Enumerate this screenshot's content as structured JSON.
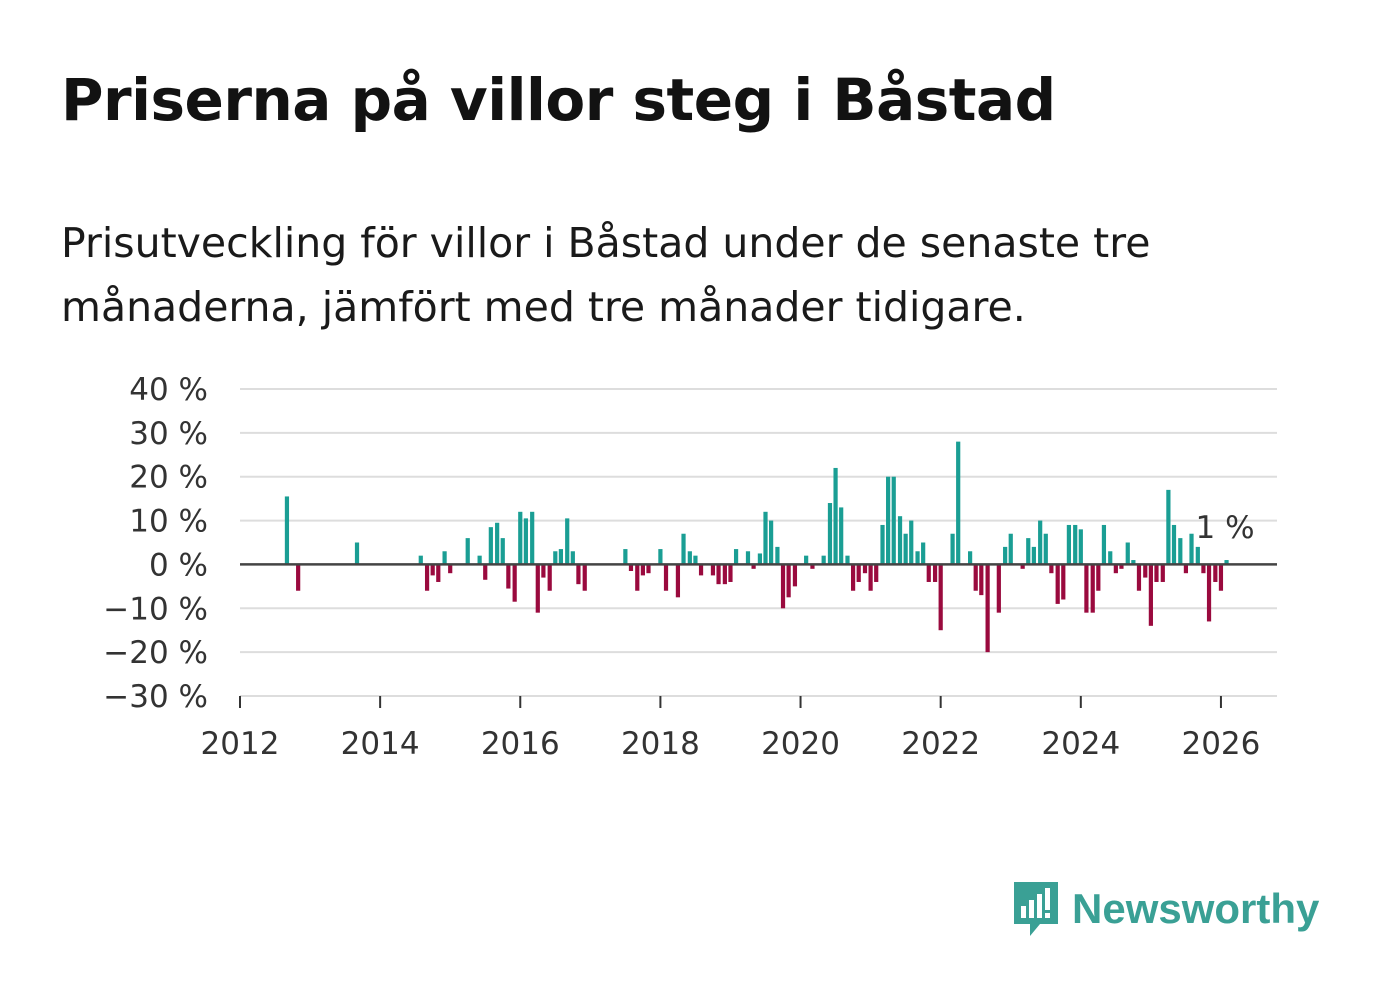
{
  "header": {
    "title": "Priserna på villor steg i Båstad",
    "subtitle": "Prisutveckling för villor i Båstad under de senaste tre månaderna, jämfört med tre månader tidigare."
  },
  "brand": {
    "name": "Newsworthy",
    "icon": "newsworthy-logo-icon"
  },
  "colors": {
    "positive": "#1a9e94",
    "negative": "#9a0a3e",
    "zero_line": "#444444",
    "grid": "#dddddd",
    "brand": "#3aa095"
  },
  "chart_data": {
    "type": "bar",
    "title": "Priserna på villor steg i Båstad",
    "xlabel": "",
    "ylabel": "",
    "ylim": [
      -30,
      40
    ],
    "xlim": [
      2012,
      2026.8
    ],
    "yticks": [
      40,
      30,
      20,
      10,
      0,
      -10,
      -20,
      -30
    ],
    "ytick_labels": [
      "40 %",
      "30 %",
      "20 %",
      "10 %",
      "0 %",
      "−10 %",
      "−20 %",
      "−30 %"
    ],
    "xticks": [
      2012,
      2014,
      2016,
      2018,
      2020,
      2022,
      2024,
      2026
    ],
    "xtick_labels": [
      "2012",
      "2014",
      "2016",
      "2018",
      "2020",
      "2022",
      "2024",
      "2026"
    ],
    "grid": true,
    "legend": "none",
    "last_value_label": "1 %",
    "series": [
      {
        "name": "Prisutveckling",
        "points": [
          {
            "x": 2012.67,
            "y": 15.5
          },
          {
            "x": 2012.83,
            "y": -6
          },
          {
            "x": 2013.67,
            "y": 5
          },
          {
            "x": 2014.58,
            "y": 2
          },
          {
            "x": 2014.67,
            "y": -6
          },
          {
            "x": 2014.75,
            "y": -2.5
          },
          {
            "x": 2014.83,
            "y": -4
          },
          {
            "x": 2014.92,
            "y": 3
          },
          {
            "x": 2015.0,
            "y": -2
          },
          {
            "x": 2015.25,
            "y": 6
          },
          {
            "x": 2015.42,
            "y": 2
          },
          {
            "x": 2015.5,
            "y": -3.5
          },
          {
            "x": 2015.58,
            "y": 8.5
          },
          {
            "x": 2015.67,
            "y": 9.5
          },
          {
            "x": 2015.75,
            "y": 6
          },
          {
            "x": 2015.83,
            "y": -5.5
          },
          {
            "x": 2015.92,
            "y": -8.5
          },
          {
            "x": 2016.0,
            "y": 12
          },
          {
            "x": 2016.08,
            "y": 10.5
          },
          {
            "x": 2016.17,
            "y": 12
          },
          {
            "x": 2016.25,
            "y": -11
          },
          {
            "x": 2016.33,
            "y": -3
          },
          {
            "x": 2016.42,
            "y": -6
          },
          {
            "x": 2016.5,
            "y": 3
          },
          {
            "x": 2016.58,
            "y": 3.5
          },
          {
            "x": 2016.67,
            "y": 10.5
          },
          {
            "x": 2016.75,
            "y": 3
          },
          {
            "x": 2016.83,
            "y": -4.5
          },
          {
            "x": 2016.92,
            "y": -6
          },
          {
            "x": 2017.5,
            "y": 3.5
          },
          {
            "x": 2017.58,
            "y": -1.5
          },
          {
            "x": 2017.67,
            "y": -6
          },
          {
            "x": 2017.75,
            "y": -2.5
          },
          {
            "x": 2017.83,
            "y": -2
          },
          {
            "x": 2018.0,
            "y": 3.5
          },
          {
            "x": 2018.08,
            "y": -6
          },
          {
            "x": 2018.25,
            "y": -7.5
          },
          {
            "x": 2018.33,
            "y": 7
          },
          {
            "x": 2018.42,
            "y": 3
          },
          {
            "x": 2018.5,
            "y": 2
          },
          {
            "x": 2018.58,
            "y": -2.5
          },
          {
            "x": 2018.75,
            "y": -2.5
          },
          {
            "x": 2018.83,
            "y": -4.5
          },
          {
            "x": 2018.92,
            "y": -4.5
          },
          {
            "x": 2019.0,
            "y": -4
          },
          {
            "x": 2019.08,
            "y": 3.5
          },
          {
            "x": 2019.25,
            "y": 3
          },
          {
            "x": 2019.33,
            "y": -1
          },
          {
            "x": 2019.42,
            "y": 2.5
          },
          {
            "x": 2019.5,
            "y": 12
          },
          {
            "x": 2019.58,
            "y": 10
          },
          {
            "x": 2019.67,
            "y": 4
          },
          {
            "x": 2019.75,
            "y": -10
          },
          {
            "x": 2019.83,
            "y": -7.5
          },
          {
            "x": 2019.92,
            "y": -5
          },
          {
            "x": 2020.08,
            "y": 2
          },
          {
            "x": 2020.17,
            "y": -1
          },
          {
            "x": 2020.33,
            "y": 2
          },
          {
            "x": 2020.42,
            "y": 14
          },
          {
            "x": 2020.5,
            "y": 22
          },
          {
            "x": 2020.58,
            "y": 13
          },
          {
            "x": 2020.67,
            "y": 2
          },
          {
            "x": 2020.75,
            "y": -6
          },
          {
            "x": 2020.83,
            "y": -4
          },
          {
            "x": 2020.92,
            "y": -2
          },
          {
            "x": 2021.0,
            "y": -6
          },
          {
            "x": 2021.08,
            "y": -4
          },
          {
            "x": 2021.17,
            "y": 9
          },
          {
            "x": 2021.25,
            "y": 20
          },
          {
            "x": 2021.33,
            "y": 20
          },
          {
            "x": 2021.42,
            "y": 11
          },
          {
            "x": 2021.5,
            "y": 7
          },
          {
            "x": 2021.58,
            "y": 10
          },
          {
            "x": 2021.67,
            "y": 3
          },
          {
            "x": 2021.75,
            "y": 5
          },
          {
            "x": 2021.83,
            "y": -4
          },
          {
            "x": 2021.92,
            "y": -4
          },
          {
            "x": 2022.0,
            "y": -15
          },
          {
            "x": 2022.17,
            "y": 7
          },
          {
            "x": 2022.25,
            "y": 28
          },
          {
            "x": 2022.42,
            "y": 3
          },
          {
            "x": 2022.5,
            "y": -6
          },
          {
            "x": 2022.58,
            "y": -7
          },
          {
            "x": 2022.67,
            "y": -20
          },
          {
            "x": 2022.83,
            "y": -11
          },
          {
            "x": 2022.92,
            "y": 4
          },
          {
            "x": 2023.0,
            "y": 7
          },
          {
            "x": 2023.17,
            "y": -1
          },
          {
            "x": 2023.25,
            "y": 6
          },
          {
            "x": 2023.33,
            "y": 4
          },
          {
            "x": 2023.42,
            "y": 10
          },
          {
            "x": 2023.5,
            "y": 7
          },
          {
            "x": 2023.58,
            "y": -2
          },
          {
            "x": 2023.67,
            "y": -9
          },
          {
            "x": 2023.75,
            "y": -8
          },
          {
            "x": 2023.83,
            "y": 9
          },
          {
            "x": 2023.92,
            "y": 9
          },
          {
            "x": 2024.0,
            "y": 8
          },
          {
            "x": 2024.08,
            "y": -11
          },
          {
            "x": 2024.17,
            "y": -11
          },
          {
            "x": 2024.25,
            "y": -6
          },
          {
            "x": 2024.33,
            "y": 9
          },
          {
            "x": 2024.42,
            "y": 3
          },
          {
            "x": 2024.5,
            "y": -2
          },
          {
            "x": 2024.58,
            "y": -1
          },
          {
            "x": 2024.67,
            "y": 5
          },
          {
            "x": 2024.75,
            "y": 1
          },
          {
            "x": 2024.83,
            "y": -6
          },
          {
            "x": 2024.92,
            "y": -3
          },
          {
            "x": 2025.0,
            "y": -14
          },
          {
            "x": 2025.08,
            "y": -4
          },
          {
            "x": 2025.17,
            "y": -4
          },
          {
            "x": 2025.25,
            "y": 17
          },
          {
            "x": 2025.33,
            "y": 9
          },
          {
            "x": 2025.42,
            "y": 6
          },
          {
            "x": 2025.5,
            "y": -2
          },
          {
            "x": 2025.58,
            "y": 7
          },
          {
            "x": 2025.67,
            "y": 4
          },
          {
            "x": 2025.75,
            "y": -2
          },
          {
            "x": 2025.83,
            "y": -13
          },
          {
            "x": 2025.92,
            "y": -4
          },
          {
            "x": 2026.0,
            "y": -6
          },
          {
            "x": 2026.08,
            "y": 1
          }
        ]
      }
    ]
  }
}
